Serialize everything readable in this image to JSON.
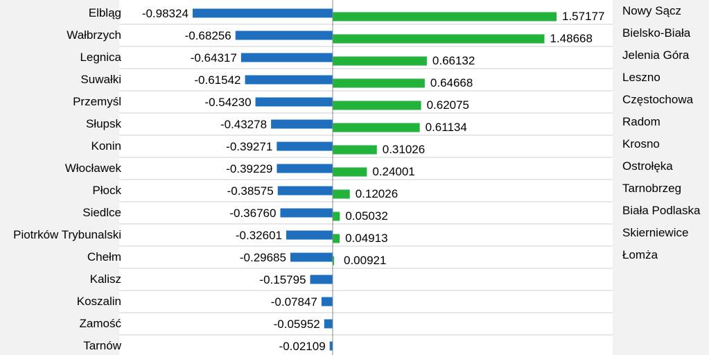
{
  "chart_data": {
    "type": "bar",
    "orientation": "horizontal",
    "grid": true,
    "colors": {
      "negative": "#1f6fbf",
      "positive": "#22b33c",
      "grid": "#cfcfcf",
      "axis": "#888888"
    },
    "negative_series": {
      "categories": [
        "Elbląg",
        "Wałbrzych",
        "Legnica",
        "Suwałki",
        "Przemyśl",
        "Słupsk",
        "Konin",
        "Włocławek",
        "Płock",
        "Siedlce",
        "Piotrków Trybunalski",
        "Chełm",
        "Kalisz",
        "Koszalin",
        "Zamość",
        "Tarnów"
      ],
      "values": [
        -0.98324,
        -0.68256,
        -0.64317,
        -0.61542,
        -0.5423,
        -0.43278,
        -0.39271,
        -0.39229,
        -0.38575,
        -0.3676,
        -0.32601,
        -0.29685,
        -0.15795,
        -0.07847,
        -0.05952,
        -0.02109
      ],
      "value_labels": [
        "-0.98324",
        "-0.68256",
        "-0.64317",
        "-0.61542",
        "-0.54230",
        "-0.43278",
        "-0.39271",
        "-0.39229",
        "-0.38575",
        "-0.36760",
        "-0.32601",
        "-0.29685",
        "-0.15795",
        "-0.07847",
        "-0.05952",
        "-0.02109"
      ]
    },
    "positive_series": {
      "categories": [
        "Nowy Sącz",
        "Bielsko-Biała",
        "Jelenia Góra",
        "Leszno",
        "Częstochowa",
        "Radom",
        "Krosno",
        "Ostrołęka",
        "Tarnobrzeg",
        "Biała Podlaska",
        "Skierniewice",
        "Łomża"
      ],
      "values": [
        1.57177,
        1.48668,
        0.66132,
        0.64668,
        0.62075,
        0.61134,
        0.31026,
        0.24001,
        0.12026,
        0.05032,
        0.04913,
        0.00921
      ],
      "value_labels": [
        "1.57177",
        "1.48668",
        "0.66132",
        "0.64668",
        "0.62075",
        "0.61134",
        "0.31026",
        "0.24001",
        "0.12026",
        "0.05032",
        "0.04913",
        "0.00921"
      ]
    }
  }
}
